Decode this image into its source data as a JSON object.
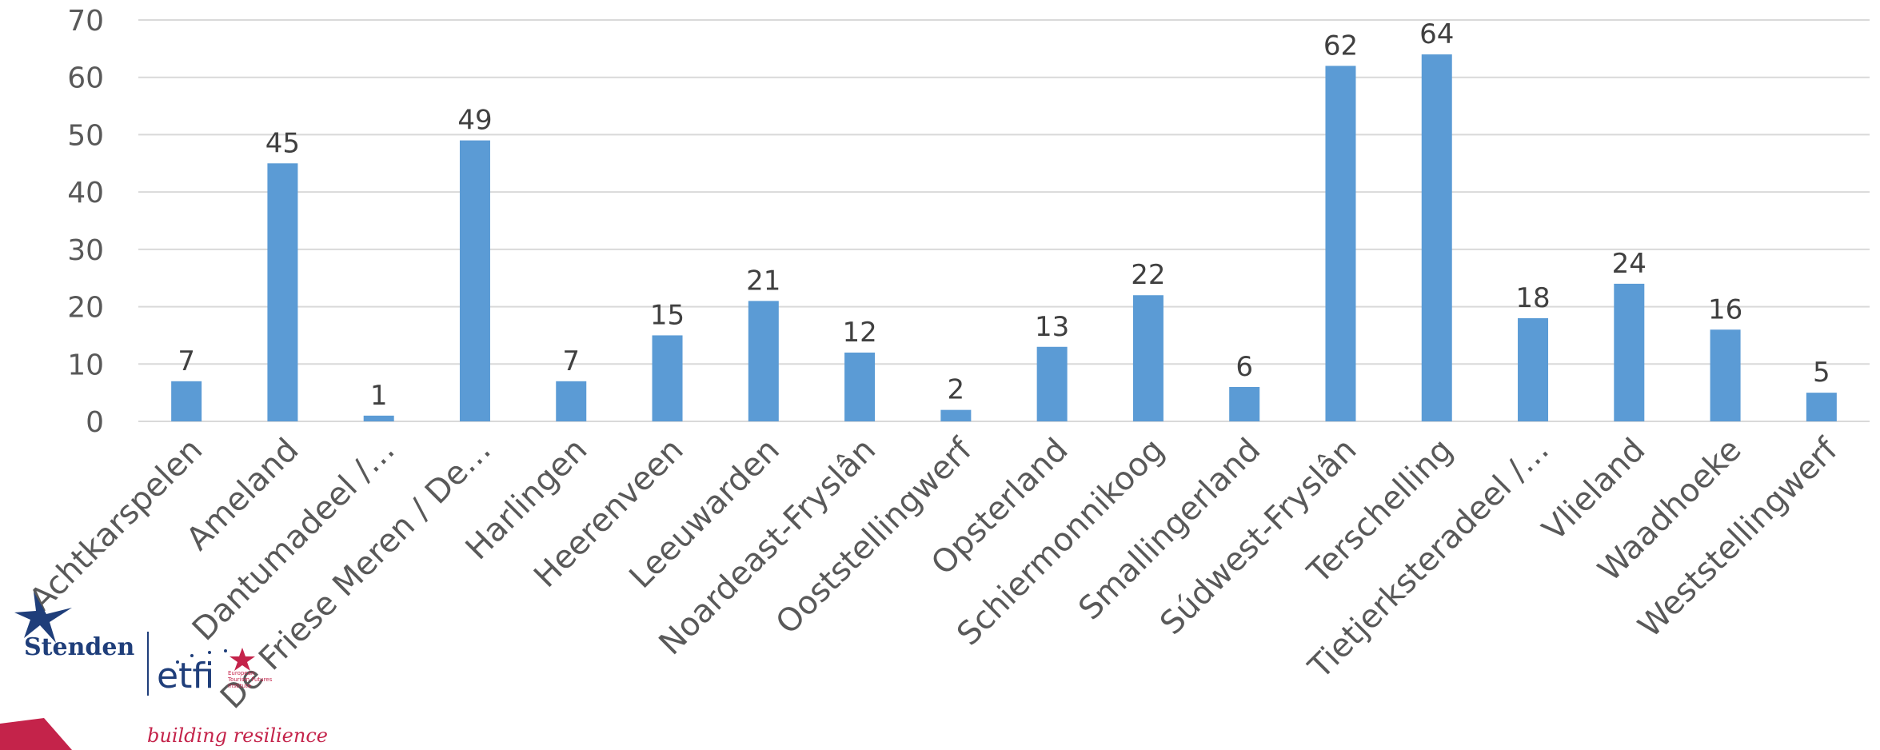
{
  "logo": {
    "stenden": "Stenden",
    "etfi": "etfi",
    "etfi_subtitle_1": "European",
    "etfi_subtitle_2": "Tourism Futures",
    "etfi_subtitle_3": "Institute",
    "tagline": "building resilience"
  },
  "colors": {
    "bar": "#5b9bd5",
    "grid": "#d9d9d9",
    "brand_red": "#c4234a",
    "brand_blue": "#1f3e7a"
  },
  "chart_data": {
    "type": "bar",
    "title": "",
    "xlabel": "",
    "ylabel": "",
    "ylim": [
      0,
      70
    ],
    "yticks": [
      0,
      10,
      20,
      30,
      40,
      50,
      60,
      70
    ],
    "grid": true,
    "categories": [
      "Achtkarspelen",
      "Ameland",
      "Dantumadeel /…",
      "De Friese Meren / De…",
      "Harlingen",
      "Heerenveen",
      "Leeuwarden",
      "Noardeast-Fryslân",
      "Ooststellingwerf",
      "Opsterland",
      "Schiermonnikoog",
      "Smallingerland",
      "Súdwest-Fryslân",
      "Terschelling",
      "Tietjerksteradeel /…",
      "Vlieland",
      "Waadhoeke",
      "Weststellingwerf"
    ],
    "values": [
      7,
      45,
      1,
      49,
      7,
      15,
      21,
      12,
      2,
      13,
      22,
      6,
      62,
      64,
      18,
      24,
      16,
      5
    ],
    "data_labels": true
  }
}
